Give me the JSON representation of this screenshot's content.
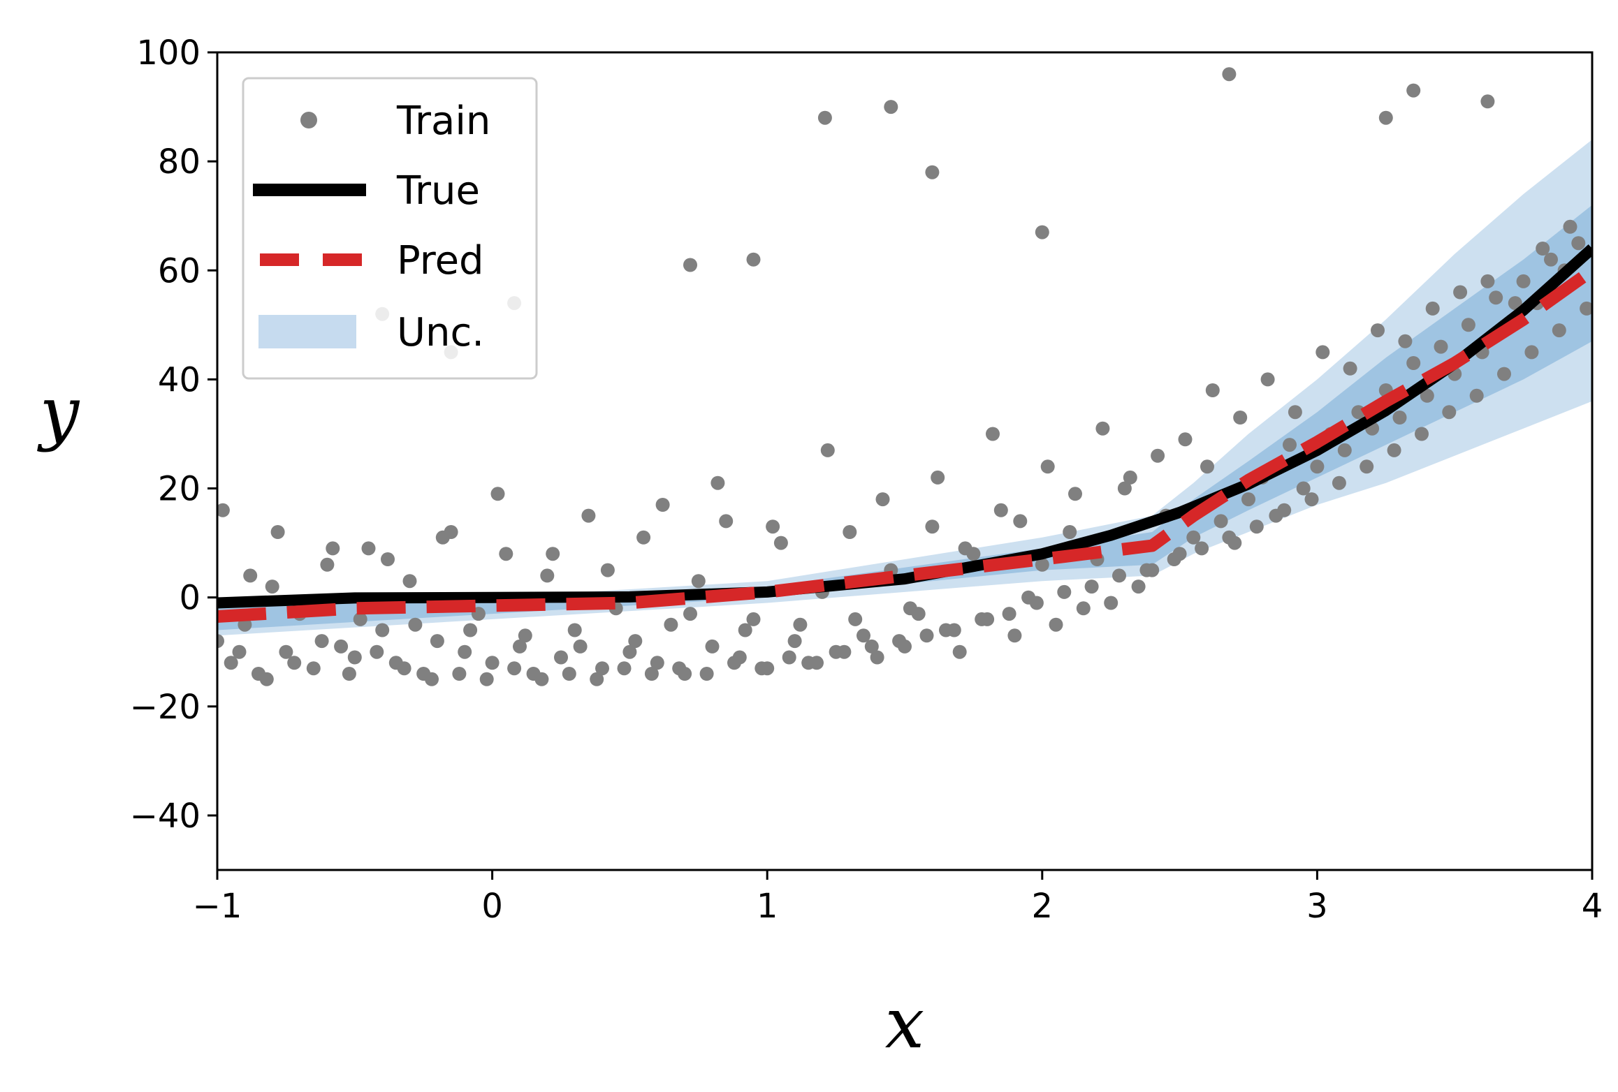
{
  "chart_data": {
    "type": "scatter",
    "xlabel": "x",
    "ylabel": "y",
    "xlim": [
      -1,
      4
    ],
    "ylim": [
      -50,
      100
    ],
    "xticks": [
      -1,
      0,
      1,
      2,
      3,
      4
    ],
    "yticks": [
      -40,
      -20,
      0,
      20,
      40,
      60,
      80,
      100
    ],
    "xtick_labels": [
      "−1",
      "0",
      "1",
      "2",
      "3",
      "4"
    ],
    "ytick_labels": [
      "−40",
      "−20",
      "0",
      "20",
      "40",
      "60",
      "80",
      "100"
    ],
    "grid": false,
    "legend_position": "top-left",
    "legend": [
      {
        "label": "Train",
        "kind": "marker",
        "color": "#808080"
      },
      {
        "label": "True",
        "kind": "line",
        "color": "#000000"
      },
      {
        "label": "Pred",
        "kind": "dashed",
        "color": "#d62728"
      },
      {
        "label": "Unc.",
        "kind": "band",
        "color": "#c6dbef"
      }
    ],
    "series": [
      {
        "name": "True",
        "color": "#000000",
        "x": [
          -1.0,
          -0.5,
          0.0,
          0.5,
          1.0,
          1.5,
          2.0,
          2.25,
          2.5,
          2.75,
          3.0,
          3.25,
          3.5,
          3.75,
          4.0
        ],
        "y": [
          -1.0,
          -0.1,
          0.0,
          0.1,
          1.0,
          3.4,
          8.0,
          11.4,
          15.6,
          20.8,
          27.0,
          34.3,
          42.9,
          52.7,
          64.0
        ]
      },
      {
        "name": "Pred",
        "color": "#d62728",
        "x": [
          -1.0,
          -0.5,
          0.0,
          0.5,
          1.0,
          1.5,
          2.0,
          2.4,
          2.55,
          2.75,
          3.0,
          3.25,
          3.5,
          3.75,
          4.0
        ],
        "y": [
          -3.5,
          -2.0,
          -1.5,
          -1.0,
          1.0,
          4.0,
          7.0,
          9.5,
          15.0,
          21.5,
          28.5,
          36.0,
          43.0,
          51.0,
          60.0
        ]
      }
    ],
    "uncertainty": {
      "name": "Unc.",
      "color": "#4a90c8",
      "x": [
        -1.0,
        0.0,
        1.0,
        2.0,
        2.4,
        2.55,
        2.75,
        3.0,
        3.25,
        3.5,
        3.75,
        4.0
      ],
      "outer_lower": [
        -7,
        -4,
        -1,
        3,
        4,
        8,
        12,
        17,
        21,
        26,
        31,
        36
      ],
      "outer_upper": [
        0,
        0,
        3,
        11,
        15,
        21,
        30,
        40,
        51,
        63,
        74,
        84
      ],
      "inner_lower": [
        -6,
        -3,
        0,
        5,
        6,
        11,
        16,
        22,
        28,
        34,
        40,
        47
      ],
      "inner_upper": [
        -1,
        -0.5,
        2,
        9,
        12,
        18,
        25,
        34,
        44,
        53,
        62,
        72
      ]
    },
    "scatter": {
      "name": "Train",
      "color": "#808080",
      "x": [
        -1.0,
        -0.95,
        -0.9,
        -0.85,
        -0.8,
        -0.75,
        -0.7,
        -0.65,
        -0.6,
        -0.55,
        -0.5,
        -0.45,
        -0.4,
        -0.35,
        -0.3,
        -0.25,
        -0.2,
        -0.15,
        -0.1,
        -0.05,
        0.0,
        0.05,
        0.1,
        0.15,
        0.2,
        0.25,
        0.3,
        0.35,
        0.4,
        0.45,
        0.5,
        0.55,
        0.6,
        0.65,
        0.7,
        0.75,
        0.8,
        0.85,
        0.9,
        0.95,
        1.0,
        1.05,
        1.1,
        1.15,
        1.2,
        1.25,
        1.3,
        1.35,
        1.4,
        1.45,
        1.5,
        1.55,
        1.6,
        1.65,
        1.7,
        1.75,
        1.8,
        1.85,
        1.9,
        1.95,
        2.0,
        2.05,
        2.1,
        2.15,
        2.2,
        2.25,
        2.3,
        2.35,
        2.4,
        2.45,
        2.5,
        2.55,
        2.6,
        2.65,
        2.7,
        2.75,
        2.8,
        2.85,
        2.9,
        2.95,
        3.0,
        3.05,
        3.1,
        3.15,
        3.2,
        3.25,
        3.3,
        3.35,
        3.4,
        3.45,
        3.5,
        3.55,
        3.6,
        3.65,
        3.7,
        3.75,
        3.8,
        3.85,
        3.9,
        3.95,
        -0.98,
        -0.88,
        -0.78,
        -0.68,
        -0.58,
        -0.48,
        -0.38,
        -0.28,
        -0.18,
        -0.08,
        0.02,
        0.12,
        0.22,
        0.32,
        0.42,
        0.52,
        0.62,
        0.72,
        0.82,
        0.92,
        1.02,
        1.12,
        1.22,
        1.32,
        1.42,
        1.52,
        1.62,
        1.72,
        1.82,
        1.92,
        2.02,
        2.12,
        2.22,
        2.32,
        2.42,
        2.52,
        2.62,
        2.72,
        2.82,
        2.92,
        3.02,
        3.12,
        3.22,
        3.32,
        3.42,
        3.52,
        3.62,
        3.72,
        3.82,
        3.92,
        -0.92,
        -0.82,
        -0.72,
        -0.62,
        -0.52,
        -0.42,
        -0.32,
        -0.22,
        -0.12,
        -0.02,
        0.08,
        0.18,
        0.28,
        0.38,
        0.48,
        0.58,
        0.68,
        0.78,
        0.88,
        0.98,
        1.08,
        1.18,
        1.28,
        1.38,
        1.48,
        1.58,
        1.68,
        1.78,
        1.88,
        1.98,
        2.08,
        2.18,
        2.28,
        2.38,
        2.48,
        2.58,
        2.68,
        2.78,
        2.88,
        2.98,
        3.08,
        3.18,
        3.28,
        3.38,
        3.48,
        3.58,
        3.68,
        3.78,
        3.88,
        3.98,
        -0.4,
        -0.15,
        0.08,
        0.72,
        0.95,
        1.21,
        1.45,
        1.6,
        2.0,
        2.68,
        3.25,
        3.35,
        3.62
      ],
      "y": [
        -8,
        -12,
        -5,
        -14,
        2,
        -10,
        -3,
        -13,
        6,
        -9,
        -11,
        9,
        -6,
        -12,
        3,
        -14,
        -8,
        12,
        -10,
        -3,
        -12,
        8,
        -9,
        -14,
        4,
        -11,
        -6,
        15,
        -13,
        -2,
        -10,
        11,
        -12,
        -5,
        -14,
        3,
        -9,
        14,
        -11,
        -4,
        -13,
        10,
        -8,
        -12,
        1,
        -10,
        12,
        -7,
        -11,
        5,
        -9,
        -3,
        13,
        -6,
        -10,
        8,
        -4,
        16,
        -7,
        0,
        6,
        -5,
        12,
        -2,
        7,
        -1,
        20,
        2,
        5,
        15,
        8,
        11,
        24,
        14,
        10,
        18,
        22,
        15,
        28,
        20,
        24,
        30,
        27,
        34,
        31,
        38,
        33,
        43,
        37,
        46,
        41,
        50,
        45,
        55,
        50,
        58,
        54,
        62,
        60,
        65,
        16,
        4,
        12,
        -2,
        9,
        -4,
        7,
        -5,
        11,
        -6,
        19,
        -7,
        8,
        -9,
        5,
        -8,
        17,
        -3,
        21,
        -6,
        13,
        -5,
        27,
        -4,
        18,
        -2,
        22,
        9,
        30,
        14,
        24,
        19,
        31,
        22,
        26,
        29,
        38,
        33,
        40,
        34,
        45,
        42,
        49,
        47,
        53,
        56,
        58,
        54,
        64,
        68,
        -10,
        -15,
        -12,
        -8,
        -14,
        -10,
        -13,
        -15,
        -14,
        -15,
        -13,
        -15,
        -14,
        -15,
        -13,
        -14,
        -13,
        -14,
        -12,
        -13,
        -11,
        -12,
        -10,
        -9,
        -8,
        -7,
        -6,
        -4,
        -3,
        -1,
        1,
        2,
        4,
        5,
        7,
        9,
        11,
        13,
        16,
        18,
        21,
        24,
        27,
        30,
        34,
        37,
        41,
        45,
        49,
        53,
        52,
        45,
        54,
        61,
        62,
        88,
        90,
        78,
        67,
        96,
        88,
        93,
        91
      ]
    }
  }
}
